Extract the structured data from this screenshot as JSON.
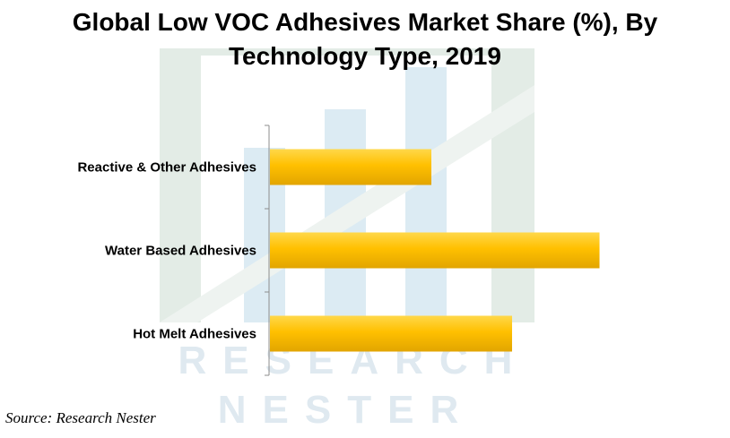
{
  "chart_data": {
    "type": "bar",
    "orientation": "horizontal",
    "title": "Global Low VOC Adhesives Market Share (%), By Technology Type, 2019",
    "categories": [
      "Reactive & Other Adhesives",
      "Water Based Adhesives",
      "Hot Melt Adhesives"
    ],
    "values": [
      24,
      49,
      36
    ],
    "xlim": [
      0,
      70
    ],
    "grid": false,
    "legend": "none",
    "bar_color": "#FFC000"
  },
  "watermark": {
    "line1": "RESEARCH",
    "line2": "NESTER"
  },
  "source": "Source: Research Nester"
}
